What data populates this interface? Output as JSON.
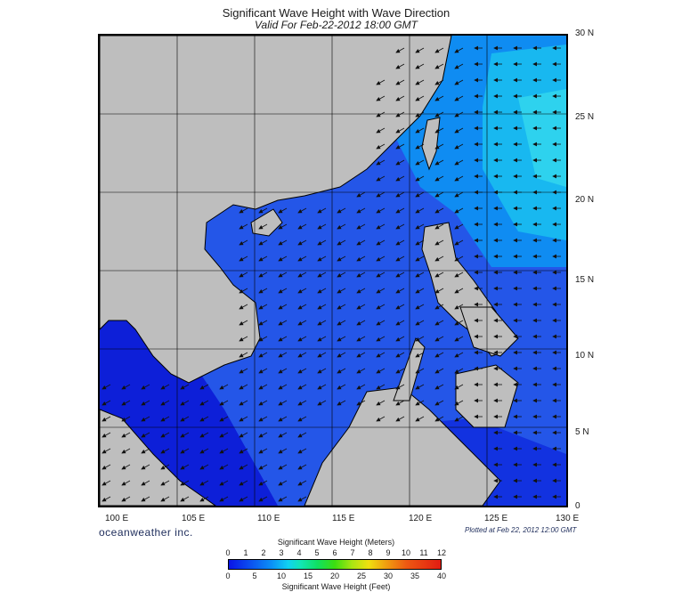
{
  "header": {
    "title": "Significant Wave Height with Wave Direction",
    "subtitle": "Valid For Feb-22-2012 18:00 GMT"
  },
  "map": {
    "lat_labels": [
      "30 N",
      "25 N",
      "20 N",
      "15 N",
      "10 N",
      "5 N",
      "0"
    ],
    "lon_labels": [
      "100 E",
      "105 E",
      "110 E",
      "115 E",
      "120 E",
      "125 E",
      "130 E"
    ],
    "lat_range": [
      0,
      30
    ],
    "lon_range": [
      100,
      130
    ],
    "colors": {
      "land": "#bdbdbd",
      "deep_wave": "#0a13e6",
      "mid_wave": "#0b6cf2",
      "high_wave": "#10d6ee",
      "sea_default": "#2b64ee"
    }
  },
  "footer": {
    "brand": "oceanweather inc.",
    "plotted": "Plotted at Feb 22, 2012 12:00 GMT"
  },
  "legend": {
    "meters_title": "Significant Wave Height (Meters)",
    "feet_title": "Significant Wave Height (Feet)",
    "meters_ticks": [
      "0",
      "1",
      "2",
      "3",
      "4",
      "5",
      "6",
      "7",
      "8",
      "9",
      "10",
      "11",
      "12"
    ],
    "feet_ticks": [
      "0",
      "5",
      "10",
      "15",
      "20",
      "25",
      "30",
      "35",
      "40"
    ]
  }
}
